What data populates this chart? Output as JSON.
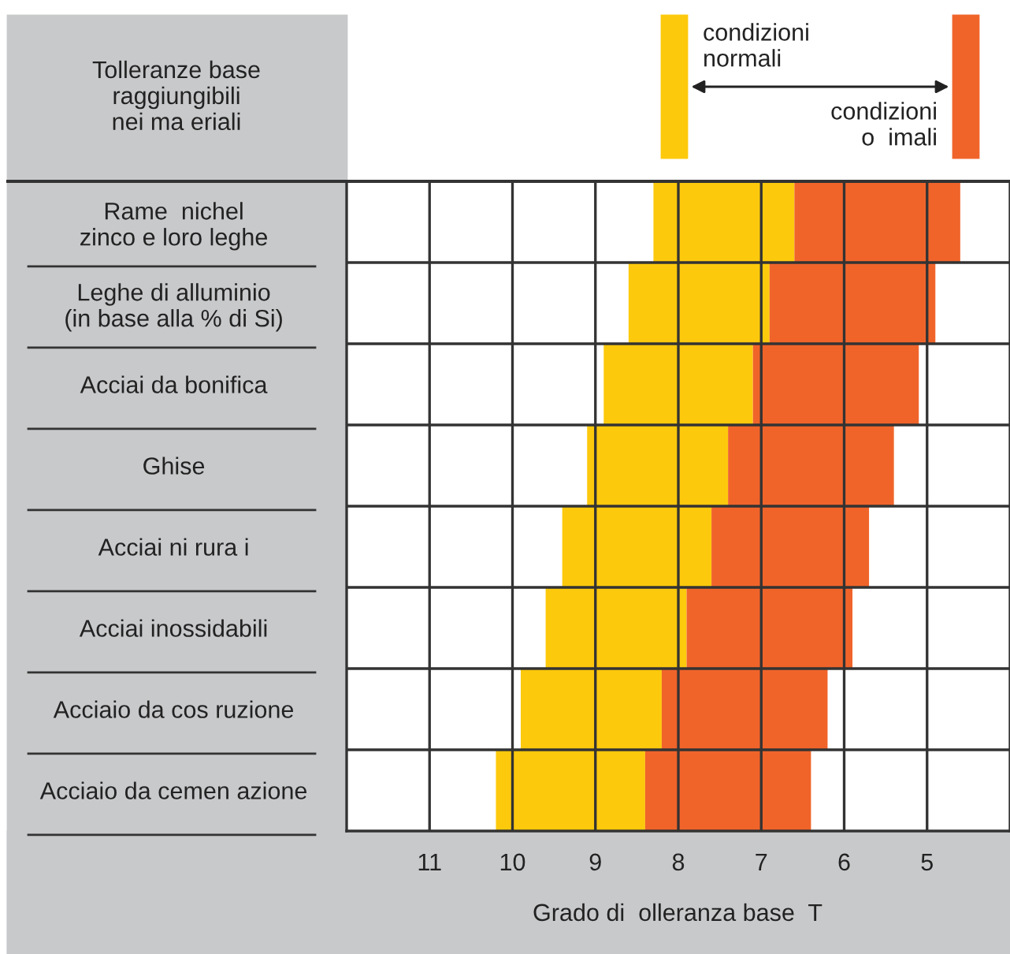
{
  "chart_data": {
    "type": "bar",
    "orientation": "horizontal",
    "stacked": false,
    "ylabel": "Tolleranze base\nraggiungibili\nnei ma eriali",
    "xlabel": "Grado di  olleranza base  T",
    "categories": [
      "Rame  nichel\nzinco e loro leghe",
      "Leghe di alluminio\n(in base alla % di Si)",
      "Acciai da bonifica",
      "Ghise",
      "Acciai ni rura i",
      "Acciai inossidabili",
      "Acciaio da cos ruzione",
      "Acciaio da cemen azione"
    ],
    "series": [
      {
        "name": "condizioni\nnormali",
        "color": "#fdc90c",
        "base": [
          8.3,
          8.6,
          8.9,
          9.1,
          9.4,
          9.6,
          9.9,
          10.2
        ],
        "values": [
          -1.7,
          -1.7,
          -1.8,
          -1.7,
          -1.8,
          -1.7,
          -1.7,
          -1.8
        ]
      },
      {
        "name": "condizioni\no  imali",
        "color": "#f0642a",
        "base": [
          6.6,
          6.9,
          7.1,
          7.4,
          7.6,
          7.9,
          8.2,
          8.4
        ],
        "values": [
          -2.0,
          -2.0,
          -2.0,
          -2.0,
          -1.9,
          -2.0,
          -2.0,
          -2.0
        ]
      }
    ],
    "xlim": [
      12,
      4
    ],
    "xticks": [
      11,
      10,
      9,
      8,
      7,
      6,
      5
    ],
    "grid": true,
    "legend": "top right"
  }
}
